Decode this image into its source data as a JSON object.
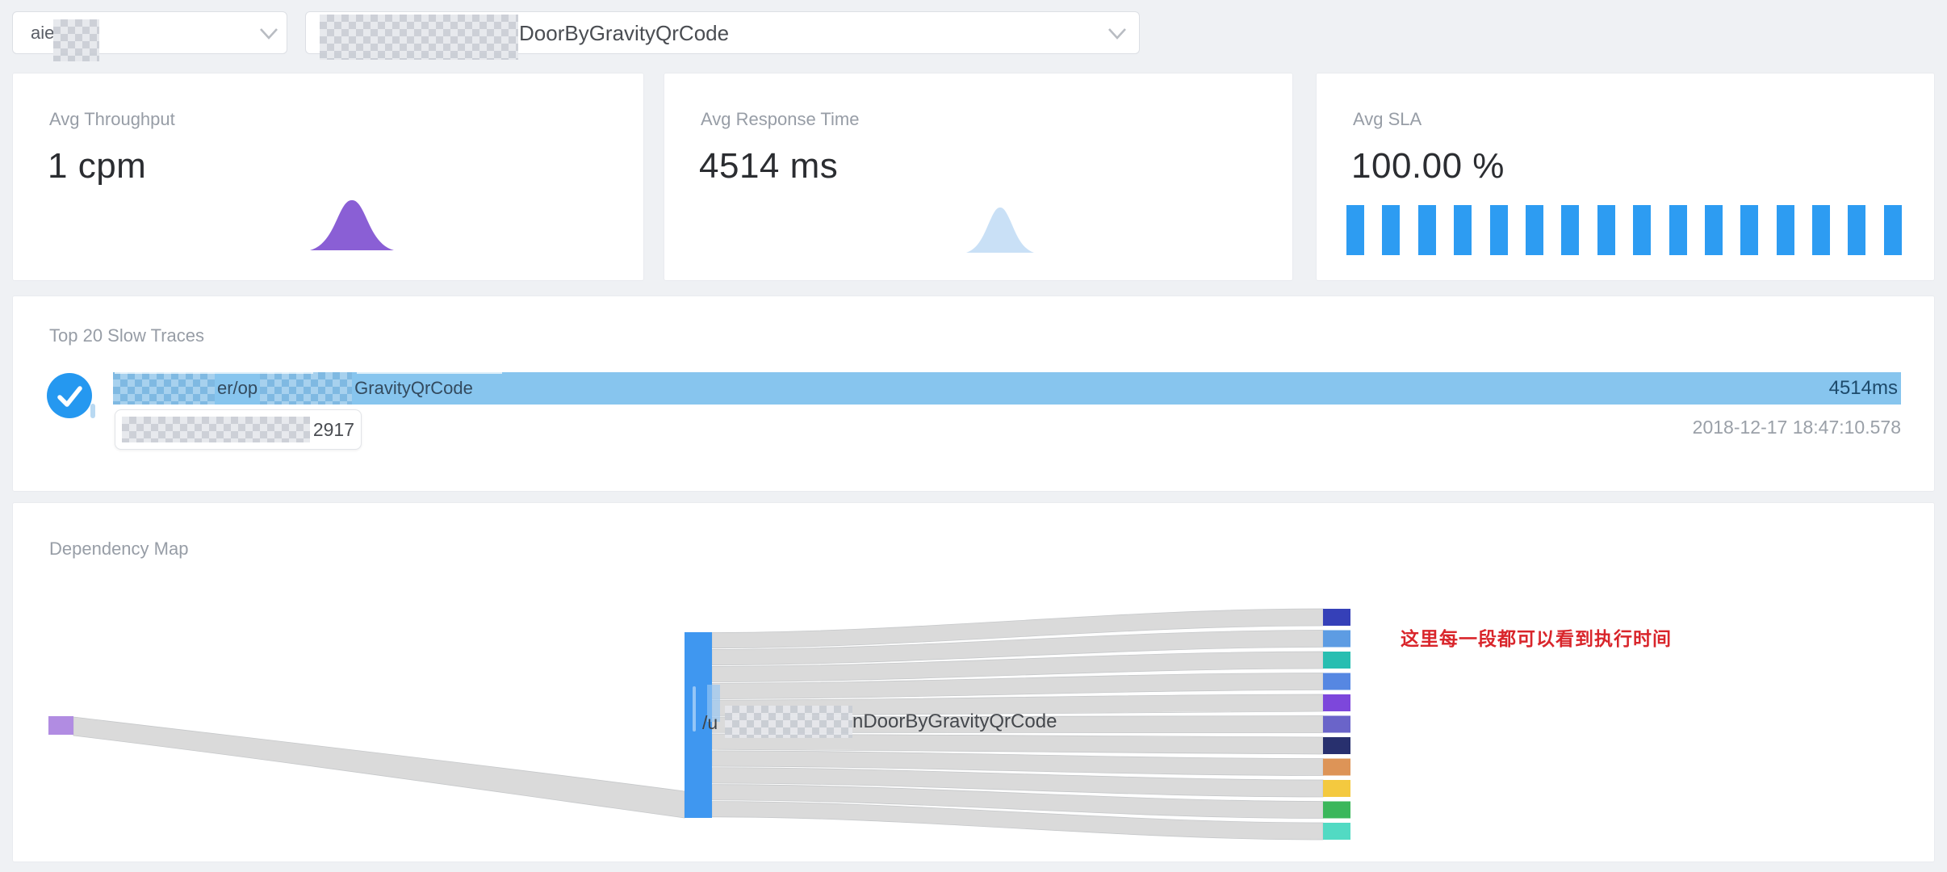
{
  "topbar": {
    "service_select": {
      "value": "aie",
      "redacted": true
    },
    "endpoint_select": {
      "value": "DoorByGravityQrCode",
      "redacted": true
    }
  },
  "metrics": [
    {
      "title": "Avg Throughput",
      "value": "1 cpm",
      "spark_color": "#8a5fd5"
    },
    {
      "title": "Avg Response Time",
      "value": "4514 ms",
      "spark_color": "#c9e0f6"
    },
    {
      "title": "Avg SLA",
      "value": "100.00 %",
      "spark_color": "#2d9cf2",
      "bar_count": 16
    }
  ],
  "slow_traces": {
    "title": "Top 20 Slow Traces",
    "rows": [
      {
        "selected": true,
        "label_segments": [
          "er/op",
          "GravityQrCode"
        ],
        "duration": "4514ms",
        "start_time": "2018-12-17 18:47:10.578",
        "popup_visible_text": "2917",
        "bar_color": "#87c5ee"
      }
    ]
  },
  "dependency_map": {
    "title": "Dependency Map",
    "center_node": {
      "label_prefix": "/u",
      "label_visible": "nDoorByGravityQrCode",
      "color": "#3f97f0"
    },
    "source_node": {
      "color": "#b18ce2"
    },
    "target_node_colors": [
      "#3540b8",
      "#5d9ce3",
      "#28beb1",
      "#5687e2",
      "#7d47db",
      "#6a64c9",
      "#28306e",
      "#dd9457",
      "#f4c93f",
      "#3bb75b",
      "#52dac3"
    ],
    "link_color": "#dadada",
    "annotation": {
      "text": "这里每一段都可以看到执行时间",
      "color": "#d9252b"
    }
  },
  "colors": {
    "checkmark_circle": "#2598f0",
    "background": "#eff1f4"
  }
}
